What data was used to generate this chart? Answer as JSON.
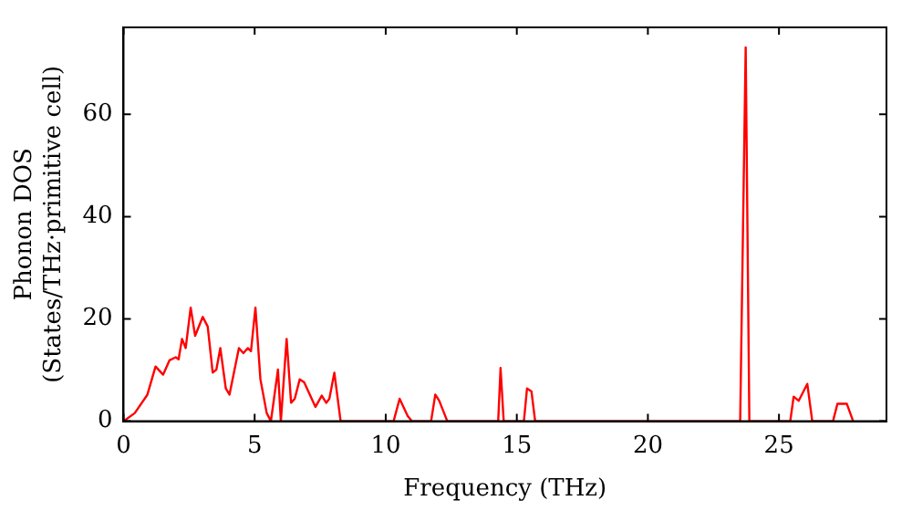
{
  "chart_data": {
    "type": "line",
    "xlabel": "Frequency (THz)",
    "ylabel": [
      "Phonon DOS",
      "(States/THz·primitive cell)"
    ],
    "xlim": [
      0,
      29.1
    ],
    "ylim": [
      0,
      77
    ],
    "xticks": [
      0,
      5,
      10,
      15,
      20,
      25
    ],
    "yticks": [
      0,
      20,
      40,
      60
    ],
    "grid": false,
    "legend": false,
    "marker": "none",
    "line_style": "solid",
    "series": [
      {
        "color": "#ff0000",
        "x": [
          0,
          0.43,
          0.91,
          1.22,
          1.51,
          1.75,
          1.99,
          2.1,
          2.23,
          2.37,
          2.56,
          2.73,
          3.02,
          3.21,
          3.4,
          3.54,
          3.69,
          3.9,
          4.04,
          4.4,
          4.57,
          4.74,
          4.86,
          5.03,
          5.22,
          5.46,
          5.62,
          5.89,
          6.0,
          6.22,
          6.39,
          6.53,
          6.72,
          6.89,
          7.32,
          7.56,
          7.73,
          7.85,
          8.04,
          8.28,
          10.3,
          10.53,
          10.84,
          11.0,
          11.73,
          11.89,
          12.04,
          12.35,
          14.29,
          14.38,
          14.5,
          15.27,
          15.39,
          15.56,
          15.7,
          23.52,
          23.73,
          23.87,
          25.43,
          25.56,
          25.75,
          26.08,
          26.27,
          27.06,
          27.23,
          27.59,
          27.83
        ],
        "values": [
          0,
          1.6,
          5.2,
          10.7,
          9.1,
          11.9,
          12.5,
          12.1,
          16.1,
          14.3,
          22.2,
          16.7,
          20.4,
          18.5,
          9.5,
          10.1,
          14.3,
          6.4,
          5.2,
          14.3,
          13.3,
          14.3,
          13.7,
          22.2,
          8.2,
          1.6,
          0,
          10.1,
          0,
          16.1,
          3.6,
          4.4,
          8.2,
          7.6,
          2.8,
          5.0,
          3.6,
          4.4,
          9.5,
          0,
          0,
          4.4,
          1.0,
          0,
          0,
          5.2,
          4.0,
          0,
          0,
          10.4,
          0,
          0,
          6.4,
          5.8,
          0,
          0,
          73.1,
          0,
          0,
          4.8,
          4.0,
          7.3,
          0,
          0,
          3.4,
          3.4,
          0
        ]
      }
    ]
  }
}
